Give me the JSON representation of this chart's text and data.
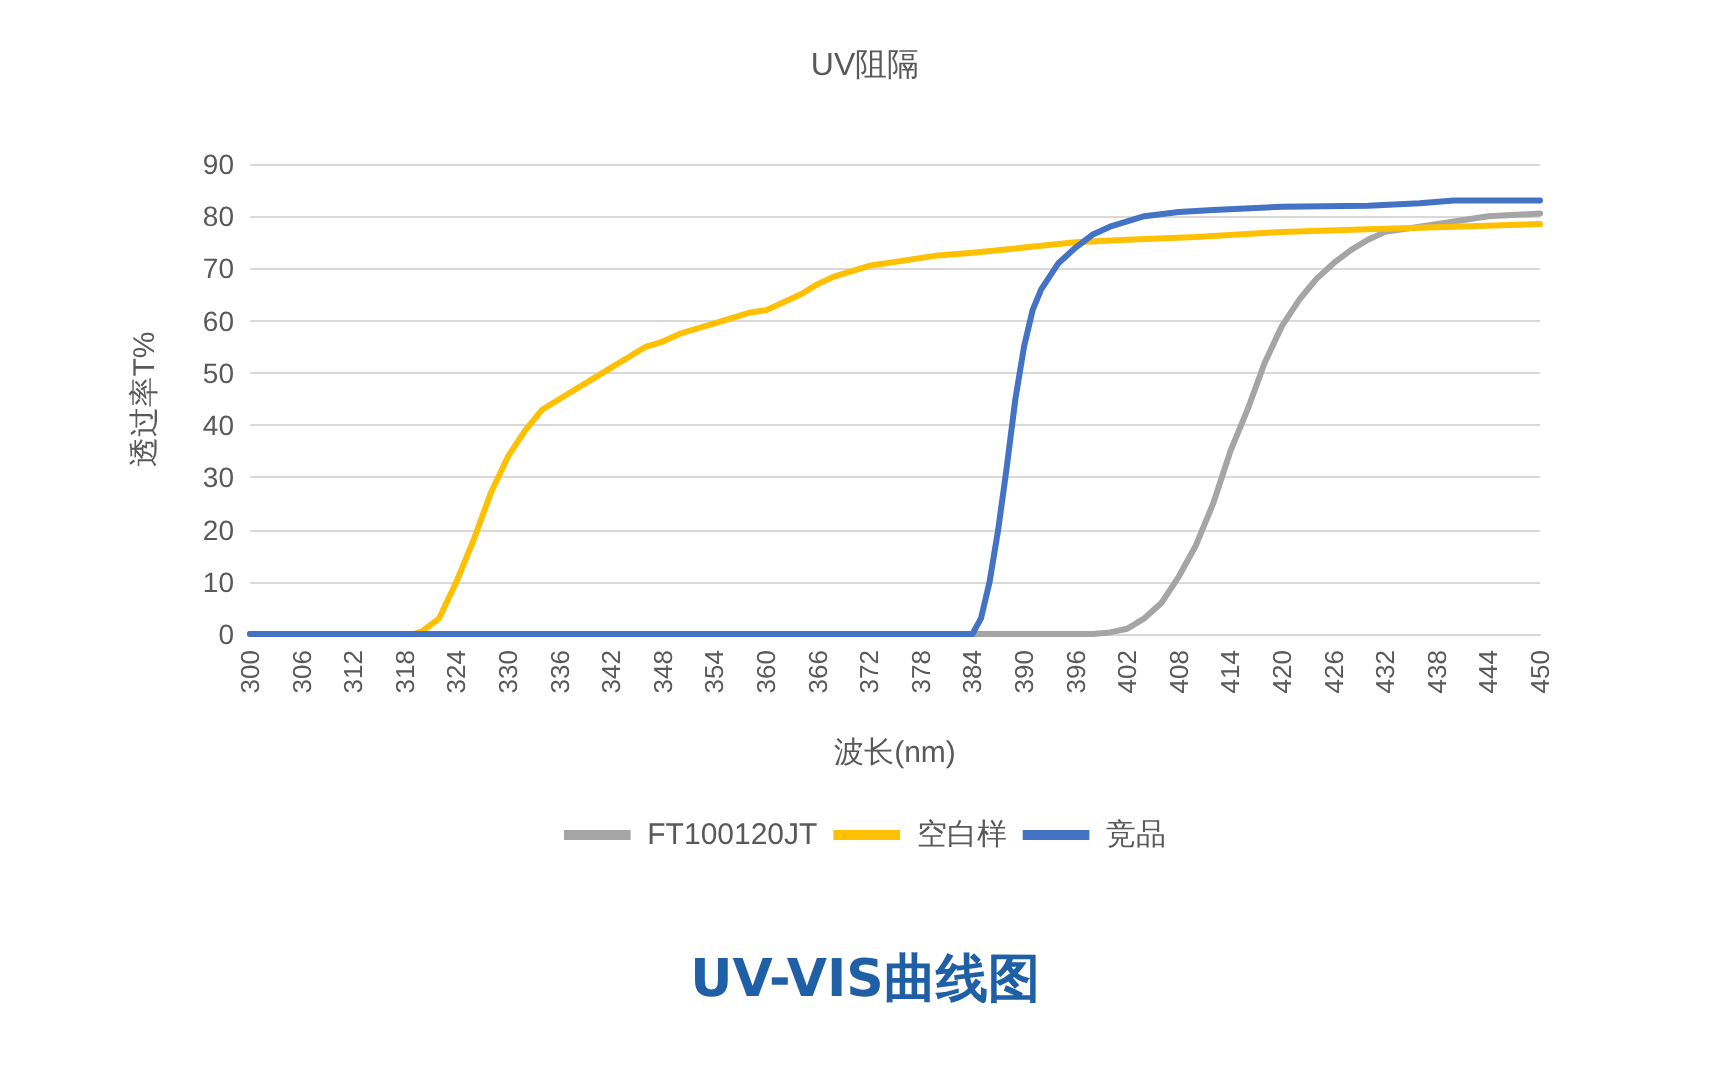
{
  "chart_data": {
    "type": "line",
    "title": "UV阻隔",
    "xlabel": "波长(nm)",
    "ylabel": "透过率T%",
    "annotations": [
      "UV-VIS曲线图"
    ],
    "xlim": [
      300,
      450
    ],
    "xticks": [
      300,
      306,
      312,
      318,
      324,
      330,
      336,
      342,
      348,
      354,
      360,
      366,
      372,
      378,
      384,
      390,
      396,
      402,
      408,
      414,
      420,
      426,
      432,
      438,
      444,
      450
    ],
    "ylim": [
      0,
      90
    ],
    "yticks": [
      0,
      10,
      20,
      30,
      40,
      50,
      60,
      70,
      80,
      90
    ],
    "grid": "y",
    "legend": "bottom",
    "marker": "none",
    "line_style": "solid",
    "series": [
      {
        "name": "FT100120JT",
        "color": "#a5a5a5",
        "x": [
          300,
          398,
          400,
          402,
          404,
          406,
          408,
          410,
          412,
          414,
          416,
          418,
          420,
          422,
          424,
          426,
          428,
          430,
          432,
          436,
          440,
          444,
          450
        ],
        "values": [
          0,
          0,
          0.3,
          1,
          3,
          6,
          11,
          17,
          25,
          35,
          43,
          52,
          59,
          64,
          68,
          71,
          73.5,
          75.5,
          77,
          78,
          79,
          80,
          80.5
        ]
      },
      {
        "name": "空白样",
        "color": "#ffc000",
        "x": [
          300,
          319,
          320,
          322,
          324,
          326,
          328,
          330,
          332,
          334,
          336,
          338,
          340,
          342,
          344,
          346,
          348,
          350,
          352,
          354,
          356,
          358,
          360,
          362,
          364,
          366,
          368,
          370,
          372,
          376,
          380,
          384,
          390,
          396,
          402,
          410,
          420,
          430,
          440,
          450
        ],
        "values": [
          0,
          0,
          0.5,
          3,
          10,
          18,
          27,
          34,
          39,
          43,
          45,
          47,
          49,
          51,
          53,
          55,
          56,
          57.5,
          58.5,
          59.5,
          60.5,
          61.5,
          62,
          63.5,
          65,
          67,
          68.5,
          69.5,
          70.5,
          71.5,
          72.5,
          73,
          74,
          75,
          75.5,
          76,
          77,
          77.5,
          78,
          78.5
        ]
      },
      {
        "name": "竞品",
        "color": "#4472c4",
        "x": [
          300,
          384,
          385,
          386,
          387,
          388,
          389,
          390,
          391,
          392,
          394,
          396,
          398,
          400,
          402,
          404,
          408,
          412,
          420,
          430,
          436,
          440,
          450
        ],
        "values": [
          0,
          0,
          3,
          10,
          20,
          32,
          45,
          55,
          62,
          66,
          71,
          74,
          76.5,
          78,
          79,
          80,
          80.8,
          81.2,
          81.8,
          82,
          82.5,
          83,
          83
        ]
      }
    ]
  }
}
